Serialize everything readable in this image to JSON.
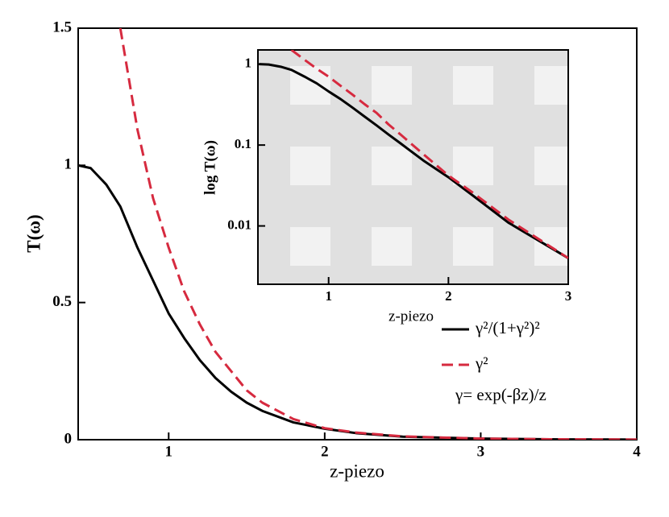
{
  "chart_data": [
    {
      "type": "line",
      "xlabel": "z-piezo",
      "ylabel": "T(ω)",
      "x": [
        0.42,
        0.5,
        0.6,
        0.69,
        0.8,
        0.9,
        1.0,
        1.1,
        1.2,
        1.3,
        1.4,
        1.5,
        1.6,
        1.8,
        2.0,
        2.2,
        2.5,
        3.0,
        3.5,
        4.0
      ],
      "series": [
        {
          "name": "γ²/(1+γ²)²",
          "color": "#000000",
          "dash": false,
          "values": [
            1.0,
            0.99,
            0.93,
            0.85,
            0.7,
            0.58,
            0.46,
            0.37,
            0.29,
            0.225,
            0.175,
            0.135,
            0.105,
            0.063,
            0.04,
            0.024,
            0.011,
            0.004,
            0.0012,
            0.0004
          ]
        },
        {
          "name": "γ²",
          "color": "#d62a3f",
          "dash": true,
          "values": [
            null,
            null,
            null,
            1.5,
            1.13,
            0.88,
            0.7,
            0.54,
            0.42,
            0.32,
            0.25,
            0.18,
            0.135,
            0.075,
            0.042,
            0.026,
            0.012,
            0.004,
            0.0013,
            0.0004
          ]
        }
      ],
      "annotation": "γ= exp(-βz)/z",
      "xlim": [
        0.42,
        4
      ],
      "ylim": [
        0,
        1.5
      ],
      "xticks": [
        1,
        2,
        3,
        4
      ],
      "yticks": [
        0,
        0.5,
        1,
        1.5
      ],
      "log_y": false
    },
    {
      "type": "line",
      "xlabel": "z-piezo",
      "ylabel": "log T(ω)",
      "x": [
        0.42,
        0.5,
        0.6,
        0.69,
        0.8,
        0.9,
        1.0,
        1.1,
        1.2,
        1.3,
        1.4,
        1.5,
        1.6,
        1.8,
        2.0,
        2.2,
        2.5,
        3.0
      ],
      "series": [
        {
          "color": "#000000",
          "dash": false,
          "values": [
            1.0,
            0.99,
            0.93,
            0.85,
            0.7,
            0.58,
            0.46,
            0.37,
            0.29,
            0.225,
            0.175,
            0.135,
            0.105,
            0.063,
            0.04,
            0.024,
            0.011,
            0.004
          ]
        },
        {
          "color": "#d62a3f",
          "dash": true,
          "values": [
            null,
            null,
            null,
            1.5,
            1.13,
            0.88,
            0.7,
            0.54,
            0.42,
            0.32,
            0.25,
            0.18,
            0.135,
            0.075,
            0.042,
            0.026,
            0.012,
            0.004
          ]
        }
      ],
      "xlim": [
        0.41,
        3
      ],
      "ylim": [
        0.0019,
        1.5
      ],
      "xticks": [
        1,
        2,
        3
      ],
      "yticks": [
        0.01,
        0.1,
        1
      ],
      "log_y": true
    }
  ]
}
